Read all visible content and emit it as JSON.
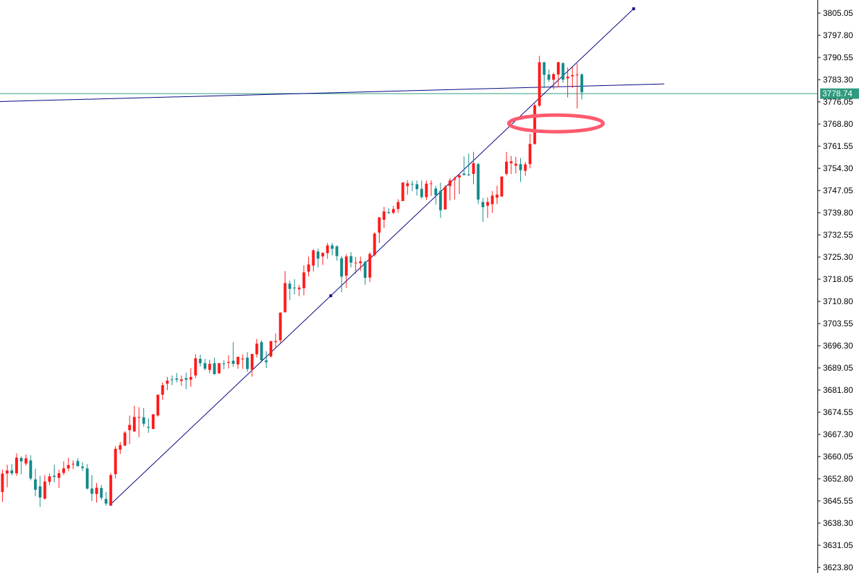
{
  "chart_data": {
    "type": "candlestick",
    "ylim": [
      3623.8,
      3808.0
    ],
    "y_ticks": [
      "3805.05",
      "3797.80",
      "3790.55",
      "3783.30",
      "3776.05",
      "3768.80",
      "3761.55",
      "3754.30",
      "3747.05",
      "3739.80",
      "3732.55",
      "3725.30",
      "3718.05",
      "3710.80",
      "3703.55",
      "3696.30",
      "3689.05",
      "3681.80",
      "3674.55",
      "3667.30",
      "3660.05",
      "3652.80",
      "3645.55",
      "3638.30",
      "3631.05",
      "3623.80"
    ],
    "current_price": "3778.74",
    "grid": false,
    "colors": {
      "bull": "#ff1a1a",
      "bear": "#158a8a",
      "trendline": "#000080",
      "price_line": "#2e9b7e",
      "highlight": "#ff5a6e"
    },
    "candles": [
      [
        3648.5,
        3655.8,
        3645.2,
        3654.5
      ],
      [
        3654.5,
        3657.4,
        3650.0,
        3655.5
      ],
      [
        3655.5,
        3657.6,
        3653.9,
        3654.6
      ],
      [
        3654.6,
        3661.1,
        3653.8,
        3659.7
      ],
      [
        3659.6,
        3660.2,
        3654.3,
        3658.5
      ],
      [
        3657.8,
        3660.8,
        3657.1,
        3659.5
      ],
      [
        3658.8,
        3660.5,
        3652.3,
        3652.9
      ],
      [
        3652.6,
        3656.1,
        3647.1,
        3649.2
      ],
      [
        3650.3,
        3653.8,
        3643.6,
        3646.7
      ],
      [
        3646.3,
        3654.0,
        3646.0,
        3651.9
      ],
      [
        3651.8,
        3654.5,
        3650.7,
        3653.6
      ],
      [
        3653.8,
        3657.4,
        3651.7,
        3653.4
      ],
      [
        3653.1,
        3655.8,
        3649.8,
        3654.6
      ],
      [
        3654.7,
        3658.5,
        3654.0,
        3656.2
      ],
      [
        3656.2,
        3659.7,
        3655.3,
        3657.3
      ],
      [
        3657.7,
        3658.8,
        3656.0,
        3657.7
      ],
      [
        3658.6,
        3659.6,
        3657.3,
        3656.9
      ],
      [
        3656.8,
        3658.2,
        3655.3,
        3656.3
      ],
      [
        3656.2,
        3657.6,
        3649.3,
        3649.6
      ],
      [
        3649.6,
        3654.0,
        3645.5,
        3647.9
      ],
      [
        3647.8,
        3651.4,
        3645.0,
        3649.9
      ],
      [
        3649.8,
        3650.8,
        3645.9,
        3646.6
      ],
      [
        3646.2,
        3648.5,
        3644.0,
        3644.7
      ],
      [
        3644.2,
        3654.7,
        3644.1,
        3654.0
      ],
      [
        3654.3,
        3663.5,
        3652.9,
        3662.6
      ],
      [
        3662.3,
        3664.8,
        3660.9,
        3663.8
      ],
      [
        3663.7,
        3668.4,
        3663.4,
        3667.9
      ],
      [
        3668.7,
        3673.5,
        3664.1,
        3670.4
      ],
      [
        3668.3,
        3676.7,
        3668.1,
        3673.0
      ],
      [
        3672.8,
        3676.2,
        3666.4,
        3673.0
      ],
      [
        3672.9,
        3675.9,
        3669.9,
        3670.8
      ],
      [
        3669.8,
        3672.6,
        3667.8,
        3669.5
      ],
      [
        3669.1,
        3673.9,
        3669.0,
        3673.9
      ],
      [
        3673.5,
        3679.9,
        3673.1,
        3680.3
      ],
      [
        3680.3,
        3684.3,
        3678.6,
        3683.4
      ],
      [
        3683.9,
        3686.1,
        3681.8,
        3684.9
      ],
      [
        3685.3,
        3686.6,
        3683.4,
        3685.1
      ],
      [
        3685.6,
        3687.4,
        3684.3,
        3685.2
      ],
      [
        3684.8,
        3686.6,
        3683.2,
        3685.3
      ],
      [
        3685.7,
        3687.5,
        3682.1,
        3685.2
      ],
      [
        3685.2,
        3689.0,
        3682.9,
        3686.1
      ],
      [
        3686.6,
        3693.6,
        3685.7,
        3692.2
      ],
      [
        3692.0,
        3693.4,
        3689.5,
        3690.6
      ],
      [
        3690.6,
        3692.0,
        3688.2,
        3688.8
      ],
      [
        3688.4,
        3691.7,
        3687.3,
        3690.4
      ],
      [
        3690.6,
        3692.4,
        3686.9,
        3687.0
      ],
      [
        3687.3,
        3690.6,
        3687.1,
        3690.6
      ],
      [
        3690.5,
        3691.6,
        3688.6,
        3690.4
      ],
      [
        3690.7,
        3693.2,
        3688.9,
        3691.0
      ],
      [
        3691.4,
        3697.5,
        3689.4,
        3690.4
      ],
      [
        3690.2,
        3692.4,
        3688.8,
        3692.7
      ],
      [
        3692.0,
        3693.5,
        3688.7,
        3692.1
      ],
      [
        3692.4,
        3694.2,
        3687.8,
        3688.7
      ],
      [
        3688.5,
        3693.7,
        3686.2,
        3693.6
      ],
      [
        3693.5,
        3698.5,
        3692.5,
        3697.0
      ],
      [
        3697.5,
        3698.0,
        3690.8,
        3691.5
      ],
      [
        3691.5,
        3694.5,
        3689.0,
        3690.9
      ],
      [
        3692.8,
        3697.9,
        3692.5,
        3697.8
      ],
      [
        3697.5,
        3700.3,
        3695.6,
        3697.8
      ],
      [
        3698.1,
        3707.2,
        3697.3,
        3707.1
      ],
      [
        3707.3,
        3720.7,
        3707.1,
        3716.8
      ],
      [
        3716.6,
        3717.6,
        3711.2,
        3714.9
      ],
      [
        3715.3,
        3718.1,
        3713.1,
        3715.2
      ],
      [
        3714.8,
        3716.2,
        3712.5,
        3715.3
      ],
      [
        3715.1,
        3722.6,
        3712.8,
        3720.3
      ],
      [
        3720.5,
        3725.4,
        3719.0,
        3722.9
      ],
      [
        3722.5,
        3727.9,
        3720.6,
        3727.5
      ],
      [
        3727.1,
        3728.1,
        3721.9,
        3724.8
      ],
      [
        3725.5,
        3726.8,
        3722.7,
        3726.7
      ],
      [
        3726.6,
        3729.9,
        3724.7,
        3729.1
      ],
      [
        3729.1,
        3729.9,
        3725.9,
        3728.0
      ],
      [
        3728.8,
        3729.1,
        3724.1,
        3725.6
      ],
      [
        3724.9,
        3725.7,
        3713.8,
        3718.9
      ],
      [
        3719.2,
        3726.2,
        3715.2,
        3725.5
      ],
      [
        3725.6,
        3726.9,
        3721.9,
        3723.5
      ],
      [
        3723.5,
        3725.3,
        3719.9,
        3723.5
      ],
      [
        3723.3,
        3725.4,
        3720.8,
        3723.9
      ],
      [
        3723.7,
        3724.2,
        3716.2,
        3718.5
      ],
      [
        3718.6,
        3726.8,
        3717.1,
        3726.3
      ],
      [
        3726.0,
        3733.4,
        3725.5,
        3733.0
      ],
      [
        3733.3,
        3738.3,
        3729.9,
        3738.3
      ],
      [
        3737.5,
        3741.7,
        3734.8,
        3740.2
      ],
      [
        3740.0,
        3741.3,
        3739.3,
        3739.9
      ],
      [
        3739.8,
        3742.1,
        3739.3,
        3741.0
      ],
      [
        3741.0,
        3744.2,
        3739.8,
        3743.3
      ],
      [
        3743.6,
        3749.6,
        3743.6,
        3749.7
      ],
      [
        3748.5,
        3750.4,
        3745.7,
        3749.4
      ],
      [
        3749.2,
        3750.3,
        3746.8,
        3749.1
      ],
      [
        3749.1,
        3750.3,
        3745.4,
        3747.5
      ],
      [
        3747.6,
        3750.3,
        3744.4,
        3744.9
      ],
      [
        3744.9,
        3750.3,
        3744.0,
        3749.3
      ],
      [
        3749.3,
        3750.4,
        3745.3,
        3749.4
      ],
      [
        3747.7,
        3748.6,
        3742.5,
        3745.5
      ],
      [
        3746.9,
        3749.6,
        3738.1,
        3740.6
      ],
      [
        3740.9,
        3748.8,
        3740.7,
        3748.2
      ],
      [
        3748.5,
        3751.1,
        3743.8,
        3750.3
      ],
      [
        3750.6,
        3751.6,
        3744.1,
        3751.0
      ],
      [
        3751.3,
        3752.0,
        3745.9,
        3752.1
      ],
      [
        3752.6,
        3758.2,
        3752.1,
        3752.1
      ],
      [
        3752.3,
        3759.1,
        3751.8,
        3752.1
      ],
      [
        3752.5,
        3759.7,
        3749.1,
        3756.0
      ],
      [
        3755.7,
        3756.1,
        3742.6,
        3744.1
      ],
      [
        3743.3,
        3744.6,
        3736.8,
        3741.6
      ],
      [
        3742.1,
        3744.8,
        3738.1,
        3743.3
      ],
      [
        3742.6,
        3746.9,
        3739.7,
        3745.4
      ],
      [
        3744.7,
        3748.6,
        3742.6,
        3745.7
      ],
      [
        3745.1,
        3751.7,
        3745.1,
        3751.6
      ],
      [
        3752.5,
        3759.7,
        3752.0,
        3756.5
      ],
      [
        3756.0,
        3758.4,
        3752.4,
        3756.6
      ],
      [
        3755.2,
        3758.1,
        3752.6,
        3755.8
      ],
      [
        3755.7,
        3757.7,
        3749.9,
        3753.7
      ],
      [
        3753.5,
        3756.4,
        3751.9,
        3755.6
      ],
      [
        3755.7,
        3765.6,
        3754.3,
        3762.3
      ],
      [
        3762.3,
        3775.5,
        3762.0,
        3774.9
      ],
      [
        3774.8,
        3791.1,
        3774.5,
        3789.0
      ],
      [
        3789.0,
        3789.1,
        3780.5,
        3784.9
      ],
      [
        3785.0,
        3786.6,
        3782.5,
        3783.3
      ],
      [
        3783.3,
        3785.6,
        3780.1,
        3785.1
      ],
      [
        3785.0,
        3789.2,
        3780.8,
        3789.0
      ],
      [
        3788.7,
        3789.0,
        3782.3,
        3783.3
      ],
      [
        3783.7,
        3787.3,
        3777.5,
        3784.3
      ],
      [
        3784.4,
        3787.4,
        3780.6,
        3784.8
      ],
      [
        3784.8,
        3788.6,
        3773.9,
        3785.0
      ],
      [
        3785.0,
        3785.4,
        3776.8,
        3779.2
      ]
    ],
    "trendlines": [
      {
        "x1": 23,
        "y1": 3644.5,
        "x2": 134,
        "y2": 3806.5,
        "markers": [
          23,
          69.7,
          134
        ]
      },
      {
        "x1": -23.8,
        "y1": 3775.2,
        "x2": 140.5,
        "y2": 3781.9,
        "markers": []
      }
    ],
    "highlight_ellipse": {
      "x": 117.5,
      "y": 3769.0
    }
  }
}
